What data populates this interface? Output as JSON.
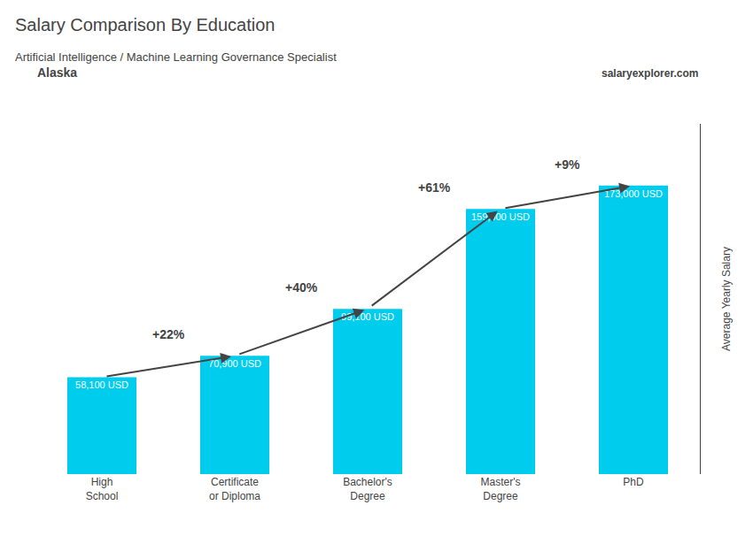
{
  "chart_data": {
    "type": "bar",
    "title": "Salary Comparison By Education",
    "subtitle": "Artificial Intelligence / Machine Learning Governance Specialist",
    "location": "Alaska",
    "source": "salaryexplorer.com",
    "ylabel": "Average Yearly Salary",
    "categories": [
      "High\nSchool",
      "Certificate\nor Diploma",
      "Bachelor's\nDegree",
      "Master's\nDegree",
      "PhD"
    ],
    "values": [
      58100,
      70900,
      99100,
      159000,
      173000
    ],
    "value_labels": [
      "58,100 USD",
      "70,900 USD",
      "99,100 USD",
      "159,000 USD",
      "173,000 USD"
    ],
    "data_labels": true,
    "annotations": [
      "+22%",
      "+40%",
      "+61%",
      "+9%"
    ],
    "color": "#00CCEE",
    "ylim": [
      0,
      210000
    ],
    "tick_labels": "x",
    "grid": false
  }
}
